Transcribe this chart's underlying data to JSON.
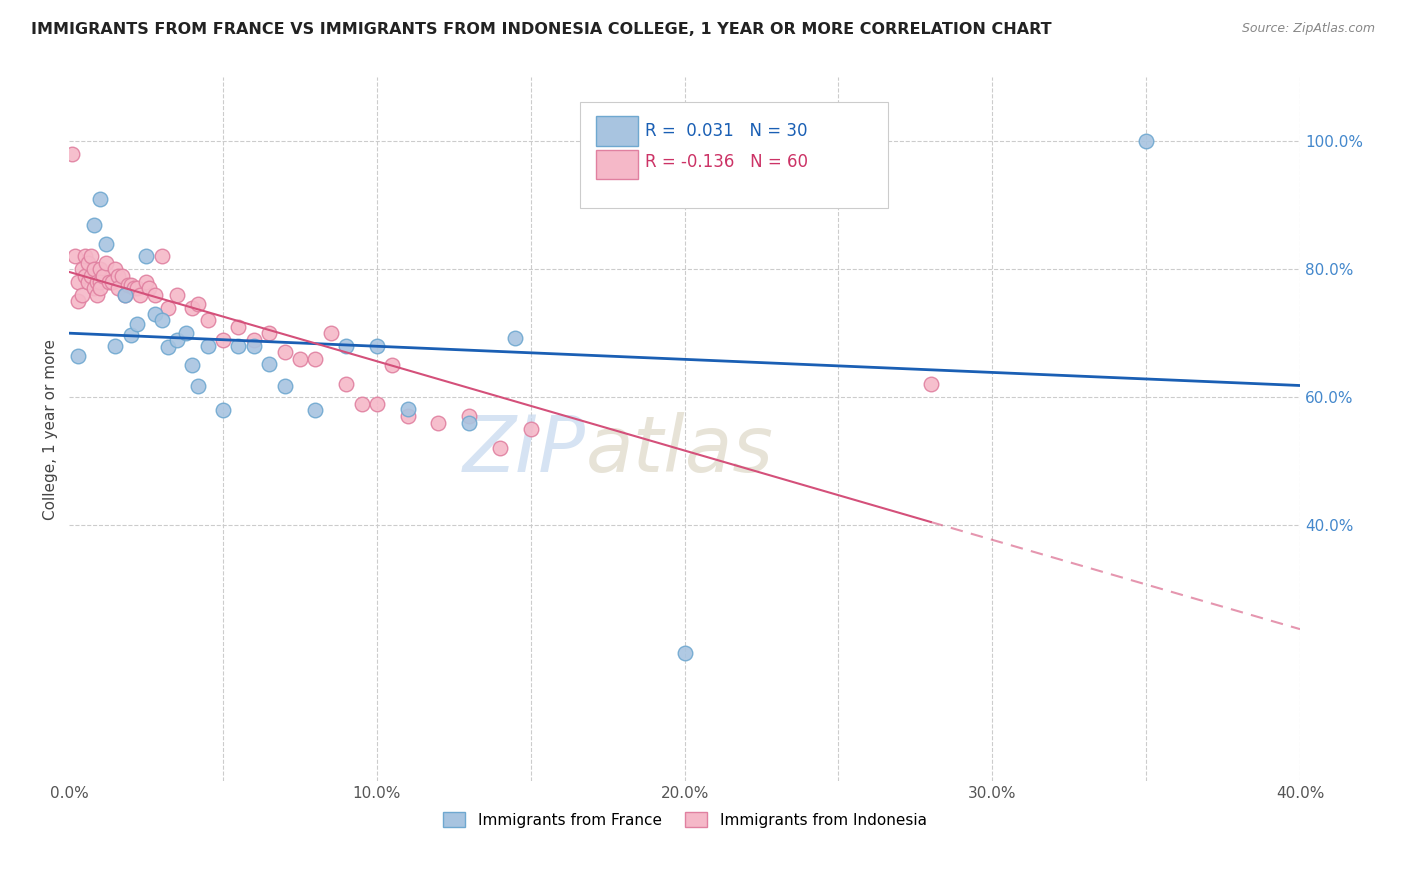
{
  "title": "IMMIGRANTS FROM FRANCE VS IMMIGRANTS FROM INDONESIA COLLEGE, 1 YEAR OR MORE CORRELATION CHART",
  "source": "Source: ZipAtlas.com",
  "ylabel": "College, 1 year or more",
  "xlim": [
    0.0,
    0.4
  ],
  "ylim": [
    0.0,
    1.1
  ],
  "xtick_labels": [
    "0.0%",
    "",
    "10.0%",
    "",
    "20.0%",
    "",
    "30.0%",
    "",
    "40.0%"
  ],
  "xtick_vals": [
    0.0,
    0.05,
    0.1,
    0.15,
    0.2,
    0.25,
    0.3,
    0.35,
    0.4
  ],
  "ytick_right_labels": [
    "40.0%",
    "60.0%",
    "80.0%",
    "100.0%"
  ],
  "ytick_right_vals": [
    0.4,
    0.6,
    0.8,
    1.0
  ],
  "france_color": "#a8c4e0",
  "france_edge_color": "#6fa8d0",
  "indonesia_color": "#f5b8c8",
  "indonesia_edge_color": "#e080a0",
  "france_R": 0.031,
  "france_N": 30,
  "indonesia_R": -0.136,
  "indonesia_N": 60,
  "france_line_color": "#1a5fb4",
  "indonesia_line_color": "#d4507a",
  "watermark_zip": "ZIP",
  "watermark_atlas": "atlas",
  "france_x": [
    0.003,
    0.008,
    0.01,
    0.012,
    0.015,
    0.018,
    0.02,
    0.022,
    0.025,
    0.028,
    0.03,
    0.032,
    0.035,
    0.038,
    0.04,
    0.042,
    0.045,
    0.05,
    0.055,
    0.06,
    0.065,
    0.07,
    0.08,
    0.09,
    0.1,
    0.11,
    0.13,
    0.145,
    0.2,
    0.35
  ],
  "france_y": [
    0.665,
    0.87,
    0.91,
    0.84,
    0.68,
    0.76,
    0.698,
    0.715,
    0.82,
    0.73,
    0.72,
    0.678,
    0.69,
    0.7,
    0.65,
    0.618,
    0.68,
    0.58,
    0.68,
    0.68,
    0.652,
    0.618,
    0.58,
    0.68,
    0.68,
    0.582,
    0.56,
    0.692,
    0.2,
    1.0
  ],
  "indonesia_x": [
    0.001,
    0.002,
    0.003,
    0.003,
    0.004,
    0.004,
    0.005,
    0.005,
    0.006,
    0.006,
    0.007,
    0.007,
    0.008,
    0.008,
    0.009,
    0.009,
    0.01,
    0.01,
    0.01,
    0.011,
    0.012,
    0.013,
    0.014,
    0.015,
    0.016,
    0.016,
    0.017,
    0.018,
    0.019,
    0.02,
    0.021,
    0.022,
    0.023,
    0.025,
    0.026,
    0.028,
    0.03,
    0.032,
    0.035,
    0.04,
    0.042,
    0.045,
    0.05,
    0.055,
    0.06,
    0.065,
    0.07,
    0.075,
    0.08,
    0.085,
    0.09,
    0.095,
    0.1,
    0.105,
    0.11,
    0.12,
    0.13,
    0.14,
    0.15,
    0.28
  ],
  "indonesia_y": [
    0.98,
    0.82,
    0.78,
    0.75,
    0.8,
    0.76,
    0.82,
    0.79,
    0.81,
    0.78,
    0.82,
    0.79,
    0.8,
    0.77,
    0.78,
    0.76,
    0.8,
    0.78,
    0.77,
    0.79,
    0.81,
    0.78,
    0.78,
    0.8,
    0.79,
    0.77,
    0.79,
    0.76,
    0.775,
    0.775,
    0.77,
    0.77,
    0.76,
    0.78,
    0.77,
    0.76,
    0.82,
    0.74,
    0.76,
    0.74,
    0.745,
    0.72,
    0.69,
    0.71,
    0.69,
    0.7,
    0.67,
    0.66,
    0.66,
    0.7,
    0.62,
    0.59,
    0.59,
    0.65,
    0.57,
    0.56,
    0.57,
    0.52,
    0.55,
    0.62
  ]
}
